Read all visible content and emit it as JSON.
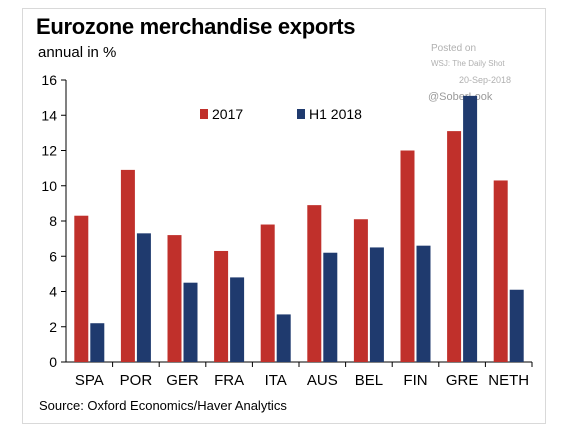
{
  "header": {
    "title": "Eurozone merchandise exports",
    "subtitle": "annual in %"
  },
  "watermark": {
    "posted": "Posted on",
    "source": "WSJ: The Daily Shot",
    "date": "20-Sep-2018",
    "handle": "@SoberLook"
  },
  "footer": {
    "source": "Source: Oxford Economics/Haver Analytics"
  },
  "colors": {
    "series_2017": "#c0302b",
    "series_h1_2018": "#1f3a6e",
    "axis": "#000000"
  },
  "chart_data": {
    "type": "bar",
    "title": "Eurozone merchandise exports",
    "subtitle": "annual in %",
    "categories": [
      "SPA",
      "POR",
      "GER",
      "FRA",
      "ITA",
      "AUS",
      "BEL",
      "FIN",
      "GRE",
      "NETH"
    ],
    "series": [
      {
        "name": "2017",
        "values": [
          8.3,
          10.9,
          7.2,
          6.3,
          7.8,
          8.9,
          8.1,
          12.0,
          13.1,
          10.3
        ]
      },
      {
        "name": "H1 2018",
        "values": [
          2.2,
          7.3,
          4.5,
          4.8,
          2.7,
          6.2,
          6.5,
          6.6,
          15.1,
          4.1
        ]
      }
    ],
    "ylim": [
      0,
      16
    ],
    "yticks": [
      0,
      2,
      4,
      6,
      8,
      10,
      12,
      14,
      16
    ],
    "xlabel": "",
    "ylabel": "",
    "grid": false,
    "legend": "top-center",
    "source": "Source: Oxford Economics/Haver Analytics"
  }
}
